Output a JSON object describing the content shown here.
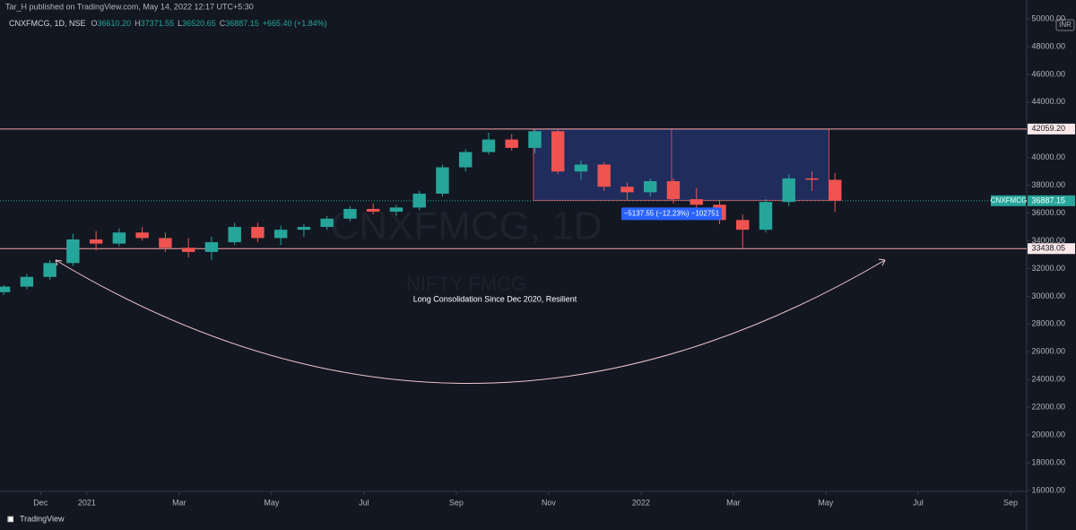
{
  "header": {
    "publisher": "Tar_H published on TradingView.com, May 14, 2022 12:17 UTC+5:30",
    "symbol": "CNXFMCG, 1D, NSE",
    "ohlc": [
      {
        "key": "O",
        "value": "36610.20"
      },
      {
        "key": "H",
        "value": "37371.55"
      },
      {
        "key": "L",
        "value": "36520.65"
      },
      {
        "key": "C",
        "value": "36887.15"
      }
    ],
    "change": "+665.40 (+1.84%)",
    "footer": "TradingView"
  },
  "chart_data": {
    "type": "candlestick",
    "watermark": [
      "CNXFMCG, 1D",
      "NIFTY FMCG"
    ],
    "annotation": "Long Consolidation Since Dec 2020, Resilient",
    "currency": "INR",
    "up_color": "#26a69a",
    "down_color": "#ef5350",
    "x": [
      -1.8,
      -1.3,
      -0.8,
      -0.3,
      0.2,
      0.7,
      1.2,
      1.7,
      2.2,
      2.7,
      3.2,
      3.7,
      4.2,
      4.7,
      5.2,
      5.7,
      6.2,
      6.7,
      7.2,
      7.7,
      8.2,
      8.7,
      9.2,
      9.7,
      10.2,
      10.7,
      11.2,
      11.7,
      12.2,
      12.7,
      13.2,
      13.7,
      14.2,
      14.7,
      15.2,
      15.7,
      16.2
    ],
    "open": [
      30300,
      30700,
      31400,
      32400,
      34100,
      33800,
      34600,
      34200,
      33500,
      33200,
      33900,
      35000,
      34200,
      34800,
      35000,
      35600,
      36300,
      36100,
      36400,
      37400,
      39300,
      40400,
      41300,
      40700,
      41900,
      39000,
      39500,
      37900,
      37500,
      38300,
      37000,
      36600,
      35500,
      34800,
      36800,
      38500,
      38400
    ],
    "high": [
      30800,
      31600,
      32600,
      34500,
      34700,
      34900,
      35000,
      34600,
      34200,
      34300,
      35300,
      35300,
      35100,
      35200,
      35800,
      36500,
      36700,
      36600,
      37600,
      39500,
      40600,
      41800,
      41700,
      42100,
      42000,
      39800,
      39700,
      38200,
      38500,
      38500,
      37800,
      36900,
      35900,
      37000,
      38800,
      39000,
      38900
    ],
    "low": [
      30100,
      30500,
      31200,
      32200,
      33300,
      33600,
      34000,
      33200,
      32800,
      32600,
      33700,
      33900,
      33700,
      34300,
      34800,
      35400,
      35900,
      35800,
      36200,
      37200,
      39000,
      40200,
      40500,
      40300,
      38800,
      38400,
      37600,
      36900,
      37200,
      36700,
      36300,
      35200,
      33500,
      34600,
      36500,
      37600,
      36100
    ],
    "close": [
      30700,
      31400,
      32400,
      34100,
      33800,
      34600,
      34200,
      33500,
      33200,
      33900,
      35000,
      34200,
      34800,
      35000,
      35600,
      36300,
      36100,
      36400,
      37400,
      39300,
      40400,
      41300,
      40700,
      41900,
      39000,
      39500,
      37900,
      37500,
      38300,
      37000,
      36600,
      35500,
      34800,
      36800,
      38500,
      38400,
      36887.15
    ],
    "xlim": [
      -1.88,
      20.35
    ],
    "xticks": [
      {
        "value": -1,
        "label": "Dec"
      },
      {
        "value": 0,
        "label": "2021"
      },
      {
        "value": 2,
        "label": "Mar"
      },
      {
        "value": 4,
        "label": "May"
      },
      {
        "value": 6,
        "label": "Jul"
      },
      {
        "value": 8,
        "label": "Sep"
      },
      {
        "value": 10,
        "label": "Nov"
      },
      {
        "value": 12,
        "label": "2022"
      },
      {
        "value": 14,
        "label": "Mar"
      },
      {
        "value": 16,
        "label": "May"
      },
      {
        "value": 18,
        "label": "Jul"
      },
      {
        "value": 20,
        "label": "Sep"
      }
    ],
    "ylim": [
      15935,
      50390
    ],
    "yticks": [
      {
        "value": 16000,
        "label": "16000.00"
      },
      {
        "value": 18000,
        "label": "18000.00"
      },
      {
        "value": 20000,
        "label": "20000.00"
      },
      {
        "value": 22000,
        "label": "22000.00"
      },
      {
        "value": 24000,
        "label": "24000.00"
      },
      {
        "value": 26000,
        "label": "26000.00"
      },
      {
        "value": 28000,
        "label": "28000.00"
      },
      {
        "value": 30000,
        "label": "30000.00"
      },
      {
        "value": 32000,
        "label": "32000.00"
      },
      {
        "value": 34000,
        "label": "34000.00"
      },
      {
        "value": 36000,
        "label": "36000.00"
      },
      {
        "value": 38000,
        "label": "38000.00"
      },
      {
        "value": 40000,
        "label": "40000.00"
      },
      {
        "value": 42000,
        "label": "42000.00"
      },
      {
        "value": 44000,
        "label": "44000.00"
      },
      {
        "value": 46000,
        "label": "46000.00"
      },
      {
        "value": 48000,
        "label": "48000.00"
      },
      {
        "value": 50000,
        "label": "50000.00"
      }
    ],
    "levels": [
      {
        "value": 42059.2,
        "label": "42059.20"
      },
      {
        "value": 33438.05,
        "label": "33438.05"
      }
    ],
    "last_price": {
      "name": "CNXFMCG",
      "value": 36887.15,
      "label": "36887.15"
    },
    "rect": {
      "x": [
        9.67,
        16.07
      ],
      "y": [
        36921.65,
        42059.2
      ],
      "divider_x": 12.66
    },
    "measure_label": "−5137.55 (−12.23%) −102751"
  }
}
